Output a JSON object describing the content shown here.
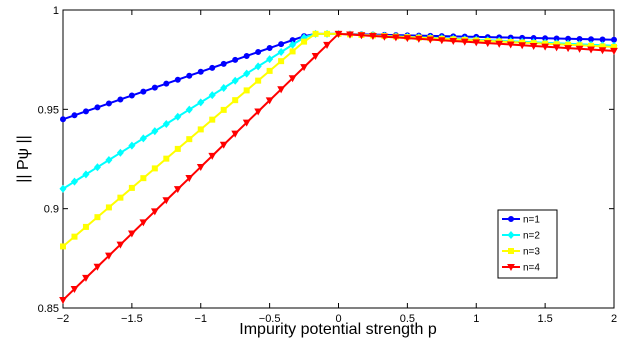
{
  "chart_data": {
    "type": "line",
    "title": "",
    "xlabel": "Impurity potential strength p",
    "ylabel": "|| Pψ ||",
    "xlim": [
      -2,
      2
    ],
    "ylim": [
      0.85,
      1
    ],
    "xticks": [
      -2,
      -1.5,
      -1,
      -0.5,
      0,
      0.5,
      1,
      1.5,
      2
    ],
    "xtick_labels": [
      "−2",
      "−1.5",
      "−1",
      "−0.5",
      "0",
      "0.5",
      "1",
      "1.5",
      "2"
    ],
    "yticks": [
      0.85,
      0.9,
      0.95,
      1
    ],
    "ytick_labels": [
      "0.85",
      "0.9",
      "0.95",
      "1"
    ],
    "grid": false,
    "legend_position": "lower-right",
    "series": [
      {
        "name": "n=1",
        "color": "#0000ff",
        "marker": "circle",
        "left": {
          "y0": 0.945,
          "slope": 0.0239
        },
        "peak": 0.988,
        "right": {
          "slope": -0.0015
        }
      },
      {
        "name": "n=2",
        "color": "#00ffff",
        "marker": "diamond",
        "left": {
          "y0": 0.91,
          "slope": 0.0435
        },
        "peak": 0.988,
        "right": {
          "slope": -0.003
        }
      },
      {
        "name": "n=3",
        "color": "#ffff00",
        "marker": "square",
        "left": {
          "y0": 0.881,
          "slope": 0.0589
        },
        "peak": 0.988,
        "right": {
          "slope": -0.0033
        }
      },
      {
        "name": "n=4",
        "color": "#ff0000",
        "marker": "triangle-down",
        "left": {
          "y0": 0.854,
          "slope": 0.067
        },
        "peak": 0.988,
        "right": {
          "slope": -0.0043
        }
      }
    ]
  }
}
